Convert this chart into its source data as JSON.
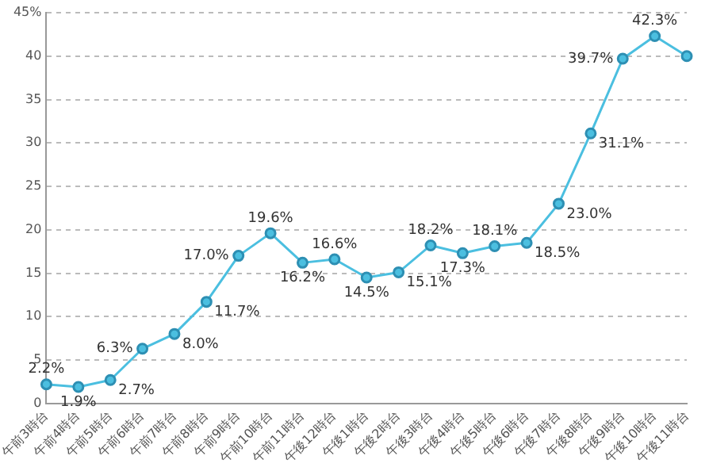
{
  "chart_data": {
    "type": "line",
    "categories": [
      "午前3時台",
      "午前4時台",
      "午前5時台",
      "午前6時台",
      "午前7時台",
      "午前8時台",
      "午前9時台",
      "午前10時台",
      "午前11時台",
      "午後12時台",
      "午後1時台",
      "午後2時台",
      "午後3時台",
      "午後4時台",
      "午後5時台",
      "午後6時台",
      "午後7時台",
      "午後8時台",
      "午後9時台",
      "午後10時台",
      "午後11時台"
    ],
    "series": [
      {
        "color": "#4bbfe0",
        "values": [
          2.2,
          1.9,
          2.7,
          6.3,
          8.0,
          11.7,
          17.0,
          19.6,
          16.2,
          16.6,
          14.5,
          15.1,
          18.2,
          17.3,
          18.1,
          18.5,
          23.0,
          31.1,
          39.7,
          42.3,
          40
        ],
        "value_labels": [
          "2.2%",
          "1.9%",
          "2.7%",
          "6.3%",
          "8.0%",
          "11.7%",
          "17.0%",
          "19.6%",
          "16.2%",
          "16.6%",
          "14.5%",
          "15.1%",
          "18.2%",
          "17.3%",
          "18.1%",
          "18.5%",
          "23.0%",
          "31.1%",
          "39.7%",
          "42.3%",
          null
        ]
      }
    ],
    "ylim": [
      0,
      45
    ],
    "yticks": [
      0,
      5,
      10,
      15,
      20,
      25,
      30,
      35,
      40,
      {
        "value": 45,
        "label": "45%"
      }
    ],
    "grid": "y",
    "marker": "circle",
    "line_style": "solid"
  }
}
